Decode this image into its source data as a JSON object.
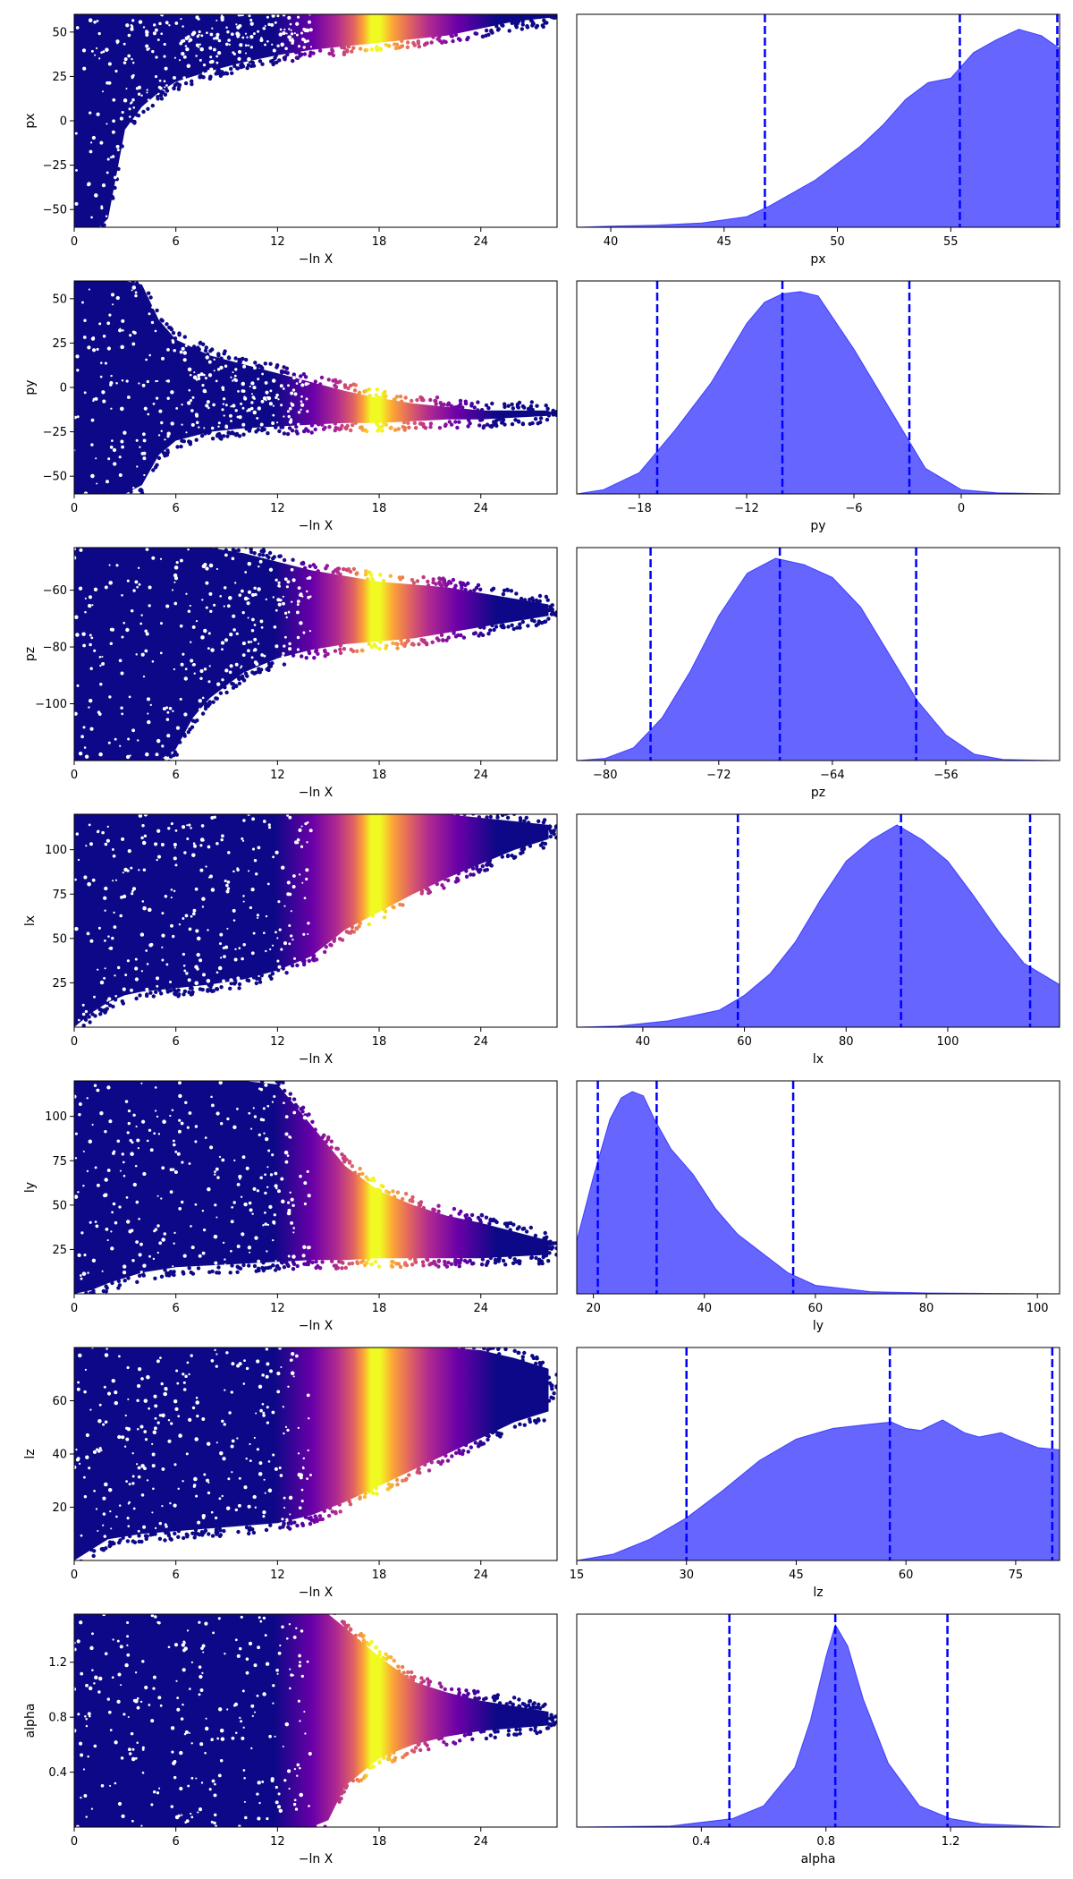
{
  "figure": {
    "rows": 7,
    "cols": 2
  },
  "colors": {
    "kde_fill": "#0000ff",
    "kde_fill_opacity": 0.6,
    "quantile_line": "#0000ff",
    "colormap": [
      "#0d0887",
      "#6a00a8",
      "#b12a90",
      "#e16462",
      "#fca636",
      "#f0f921"
    ]
  },
  "chart_data": [
    {
      "param": "px",
      "trace": {
        "type": "scatter",
        "xlabel": "−ln X",
        "ylabel": "px",
        "xlim": [
          0,
          28.5
        ],
        "ylim": [
          -60,
          60
        ],
        "xticks": [
          0,
          6,
          12,
          18,
          24
        ],
        "yticks": [
          -50,
          -25,
          0,
          25,
          50
        ],
        "envelope": {
          "x": [
            0,
            0.5,
            1.0,
            1.5,
            2.0,
            2.5,
            3.0,
            4.0,
            5.0,
            6.0,
            8.0,
            10.0,
            12.0,
            14.0,
            16.0,
            18.0,
            20.0,
            22.0,
            24.0,
            26.0,
            28.0
          ],
          "lo": [
            -60,
            -60,
            -60,
            -60,
            -55,
            -30,
            -5,
            8,
            16,
            22,
            28,
            33,
            37,
            40,
            42,
            44,
            46,
            48,
            52,
            56,
            58
          ],
          "hi": [
            60,
            60,
            60,
            60,
            60,
            60,
            60,
            60,
            60,
            60,
            60,
            60,
            60,
            60,
            60,
            60,
            60,
            60,
            60,
            60,
            60
          ]
        },
        "peak": 17.5
      },
      "marginal": {
        "type": "area",
        "xlabel": "px",
        "xlim": [
          38.5,
          59.8
        ],
        "xticks": [
          40,
          45,
          50,
          55
        ],
        "x": [
          38.5,
          40,
          42,
          44,
          46,
          47,
          48,
          49,
          50,
          51,
          52,
          53,
          54,
          55,
          56,
          57,
          58,
          59,
          59.8
        ],
        "y": [
          0.0,
          0.005,
          0.01,
          0.02,
          0.05,
          0.1,
          0.16,
          0.22,
          0.3,
          0.38,
          0.48,
          0.6,
          0.68,
          0.7,
          0.82,
          0.88,
          0.93,
          0.9,
          0.84
        ],
        "quantiles": [
          46.8,
          55.4,
          59.7
        ]
      }
    },
    {
      "param": "py",
      "trace": {
        "type": "scatter",
        "xlabel": "−ln X",
        "ylabel": "py",
        "xlim": [
          0,
          28.5
        ],
        "ylim": [
          -60,
          60
        ],
        "xticks": [
          0,
          6,
          12,
          18,
          24
        ],
        "yticks": [
          -50,
          -25,
          0,
          25,
          50
        ],
        "envelope": {
          "x": [
            0,
            1,
            2,
            3,
            4,
            5,
            6,
            8,
            10,
            12,
            14,
            16,
            18,
            20,
            22,
            24,
            26,
            28
          ],
          "lo": [
            -60,
            -60,
            -60,
            -60,
            -55,
            -38,
            -30,
            -25,
            -23,
            -22,
            -21,
            -20,
            -20,
            -19,
            -18,
            -18,
            -17,
            -16
          ],
          "hi": [
            60,
            60,
            60,
            60,
            58,
            38,
            27,
            18,
            13,
            8,
            3,
            -2,
            -6,
            -9,
            -11,
            -13,
            -13,
            -13
          ]
        },
        "peak": 17.5
      },
      "marginal": {
        "type": "area",
        "xlabel": "py",
        "xlim": [
          -21.5,
          5.5
        ],
        "xticks": [
          -18,
          -12,
          -6,
          0
        ],
        "x": [
          -21.5,
          -20,
          -18,
          -16,
          -14,
          -12,
          -11,
          -10,
          -9,
          -8,
          -6,
          -4,
          -2,
          0,
          2,
          5.5
        ],
        "y": [
          0.0,
          0.02,
          0.1,
          0.3,
          0.52,
          0.8,
          0.9,
          0.94,
          0.95,
          0.93,
          0.68,
          0.4,
          0.12,
          0.02,
          0.005,
          0.0
        ],
        "quantiles": [
          -17.0,
          -10.0,
          -2.9
        ]
      }
    },
    {
      "param": "pz",
      "trace": {
        "type": "scatter",
        "xlabel": "−ln X",
        "ylabel": "pz",
        "xlim": [
          0,
          28.5
        ],
        "ylim": [
          -120,
          -45
        ],
        "xticks": [
          0,
          6,
          12,
          18,
          24
        ],
        "yticks": [
          -100,
          -80,
          -60
        ],
        "envelope": {
          "x": [
            0,
            2,
            4,
            5,
            6,
            7,
            8,
            10,
            12,
            14,
            16,
            18,
            20,
            22,
            24,
            26,
            28
          ],
          "lo": [
            -120,
            -120,
            -120,
            -120,
            -116,
            -105,
            -98,
            -89,
            -84,
            -81,
            -79,
            -78,
            -77,
            -75,
            -73,
            -71,
            -69
          ],
          "hi": [
            -45,
            -45,
            -45,
            -45,
            -45,
            -45,
            -45,
            -47,
            -50,
            -53,
            -55,
            -57,
            -58,
            -59,
            -61,
            -63,
            -65
          ]
        },
        "peak": 17.5
      },
      "marginal": {
        "type": "area",
        "xlabel": "pz",
        "xlim": [
          -82,
          -48
        ],
        "xticks": [
          -80,
          -72,
          -64,
          -56
        ],
        "x": [
          -82,
          -80,
          -78,
          -76,
          -74,
          -72,
          -70,
          -68,
          -66,
          -64,
          -62,
          -60,
          -58,
          -56,
          -54,
          -52,
          -48
        ],
        "y": [
          0.0,
          0.01,
          0.06,
          0.2,
          0.42,
          0.68,
          0.88,
          0.95,
          0.92,
          0.86,
          0.72,
          0.5,
          0.28,
          0.12,
          0.03,
          0.005,
          0.0
        ],
        "quantiles": [
          -76.8,
          -67.7,
          -58.1
        ]
      }
    },
    {
      "param": "lx",
      "trace": {
        "type": "scatter",
        "xlabel": "−ln X",
        "ylabel": "lx",
        "xlim": [
          0,
          28.5
        ],
        "ylim": [
          0,
          120
        ],
        "xticks": [
          0,
          6,
          12,
          18,
          24
        ],
        "yticks": [
          25,
          50,
          75,
          100
        ],
        "envelope": {
          "x": [
            0,
            0.5,
            1,
            2,
            3,
            4,
            6,
            8,
            10,
            12,
            14,
            16,
            18,
            20,
            22,
            24,
            26,
            28
          ],
          "lo": [
            0,
            4,
            8,
            14,
            18,
            20,
            22,
            24,
            27,
            32,
            40,
            55,
            65,
            75,
            84,
            92,
            100,
            106
          ],
          "hi": [
            120,
            120,
            120,
            120,
            120,
            120,
            120,
            120,
            120,
            120,
            120,
            120,
            120,
            120,
            120,
            118,
            116,
            114
          ]
        },
        "peak": 17.5
      },
      "marginal": {
        "type": "area",
        "xlabel": "lx",
        "xlim": [
          27,
          122
        ],
        "xticks": [
          40,
          60,
          80,
          100
        ],
        "x": [
          27,
          35,
          45,
          55,
          60,
          65,
          70,
          75,
          80,
          85,
          90,
          95,
          100,
          105,
          110,
          115,
          122
        ],
        "y": [
          0.0,
          0.005,
          0.03,
          0.08,
          0.15,
          0.25,
          0.4,
          0.6,
          0.78,
          0.88,
          0.95,
          0.88,
          0.78,
          0.62,
          0.45,
          0.3,
          0.2
        ],
        "quantiles": [
          58.7,
          90.8,
          116.2
        ]
      }
    },
    {
      "param": "ly",
      "trace": {
        "type": "scatter",
        "xlabel": "−ln X",
        "ylabel": "ly",
        "xlim": [
          0,
          28.5
        ],
        "ylim": [
          0,
          120
        ],
        "xticks": [
          0,
          6,
          12,
          18,
          24
        ],
        "yticks": [
          25,
          50,
          75,
          100
        ],
        "envelope": {
          "x": [
            0,
            1,
            2,
            4,
            6,
            8,
            10,
            12,
            14,
            16,
            18,
            20,
            22,
            24,
            26,
            28
          ],
          "lo": [
            0,
            2,
            6,
            12,
            15,
            16,
            17,
            18,
            19,
            19,
            20,
            20,
            20,
            20,
            21,
            22
          ],
          "hi": [
            120,
            120,
            120,
            120,
            120,
            120,
            120,
            118,
            95,
            72,
            58,
            50,
            44,
            40,
            35,
            30
          ]
        },
        "peak": 17.5
      },
      "marginal": {
        "type": "area",
        "xlabel": "ly",
        "xlim": [
          17,
          104
        ],
        "xticks": [
          20,
          40,
          60,
          80,
          100
        ],
        "x": [
          17,
          20,
          23,
          25,
          27,
          29,
          31,
          34,
          38,
          42,
          46,
          50,
          55,
          60,
          70,
          80,
          104
        ],
        "y": [
          0.25,
          0.55,
          0.82,
          0.92,
          0.95,
          0.93,
          0.82,
          0.68,
          0.56,
          0.4,
          0.28,
          0.2,
          0.1,
          0.04,
          0.01,
          0.004,
          0.0
        ],
        "quantiles": [
          20.8,
          31.4,
          56.0
        ]
      }
    },
    {
      "param": "lz",
      "trace": {
        "type": "scatter",
        "xlabel": "−ln X",
        "ylabel": "lz",
        "xlim": [
          0,
          28.5
        ],
        "ylim": [
          0,
          80
        ],
        "xticks": [
          0,
          6,
          12,
          18,
          24
        ],
        "yticks": [
          20,
          40,
          60
        ],
        "envelope": {
          "x": [
            0,
            1,
            2,
            4,
            6,
            8,
            10,
            12,
            14,
            16,
            18,
            20,
            22,
            24,
            26,
            28
          ],
          "lo": [
            0,
            4,
            8,
            10,
            11,
            12,
            13,
            14,
            17,
            22,
            28,
            34,
            40,
            46,
            52,
            56
          ],
          "hi": [
            80,
            80,
            80,
            80,
            80,
            80,
            80,
            80,
            80,
            80,
            80,
            80,
            80,
            79,
            76,
            72
          ]
        },
        "peak": 17.5
      },
      "marginal": {
        "type": "area",
        "xlabel": "lz",
        "xlim": [
          15,
          81
        ],
        "xticks": [
          15,
          30,
          45,
          60,
          75
        ],
        "x": [
          15,
          20,
          25,
          30,
          35,
          40,
          45,
          50,
          55,
          58,
          60,
          62,
          65,
          68,
          70,
          73,
          75,
          78,
          81
        ],
        "y": [
          0.0,
          0.03,
          0.1,
          0.2,
          0.33,
          0.47,
          0.57,
          0.62,
          0.64,
          0.65,
          0.62,
          0.61,
          0.66,
          0.6,
          0.58,
          0.6,
          0.57,
          0.53,
          0.52
        ],
        "quantiles": [
          30.0,
          57.8,
          80.0
        ]
      }
    },
    {
      "param": "alpha",
      "trace": {
        "type": "scatter",
        "xlabel": "−ln X",
        "ylabel": "alpha",
        "xlim": [
          0,
          28.5
        ],
        "ylim": [
          0,
          1.55
        ],
        "xticks": [
          0,
          6,
          12,
          18,
          24
        ],
        "yticks": [
          0.4,
          0.8,
          1.2
        ],
        "envelope": {
          "x": [
            0,
            2,
            4,
            6,
            8,
            10,
            12,
            14,
            15,
            16,
            18,
            20,
            22,
            24,
            26,
            28
          ],
          "lo": [
            0,
            0,
            0,
            0,
            0,
            0,
            0,
            0,
            0.05,
            0.3,
            0.5,
            0.6,
            0.66,
            0.7,
            0.72,
            0.74
          ],
          "hi": [
            1.55,
            1.55,
            1.55,
            1.55,
            1.55,
            1.55,
            1.55,
            1.55,
            1.55,
            1.45,
            1.24,
            1.06,
            0.98,
            0.92,
            0.88,
            0.84
          ]
        },
        "peak": 17.5
      },
      "marginal": {
        "type": "area",
        "xlabel": "alpha",
        "xlim": [
          0.0,
          1.55
        ],
        "xticks": [
          0.4,
          0.8,
          1.2
        ],
        "x": [
          0.0,
          0.3,
          0.5,
          0.6,
          0.7,
          0.75,
          0.8,
          0.83,
          0.87,
          0.92,
          1.0,
          1.1,
          1.2,
          1.3,
          1.55
        ],
        "y": [
          0.0,
          0.005,
          0.04,
          0.1,
          0.28,
          0.5,
          0.8,
          0.95,
          0.85,
          0.6,
          0.3,
          0.1,
          0.04,
          0.015,
          0.0
        ],
        "quantiles": [
          0.49,
          0.83,
          1.19
        ]
      }
    }
  ]
}
